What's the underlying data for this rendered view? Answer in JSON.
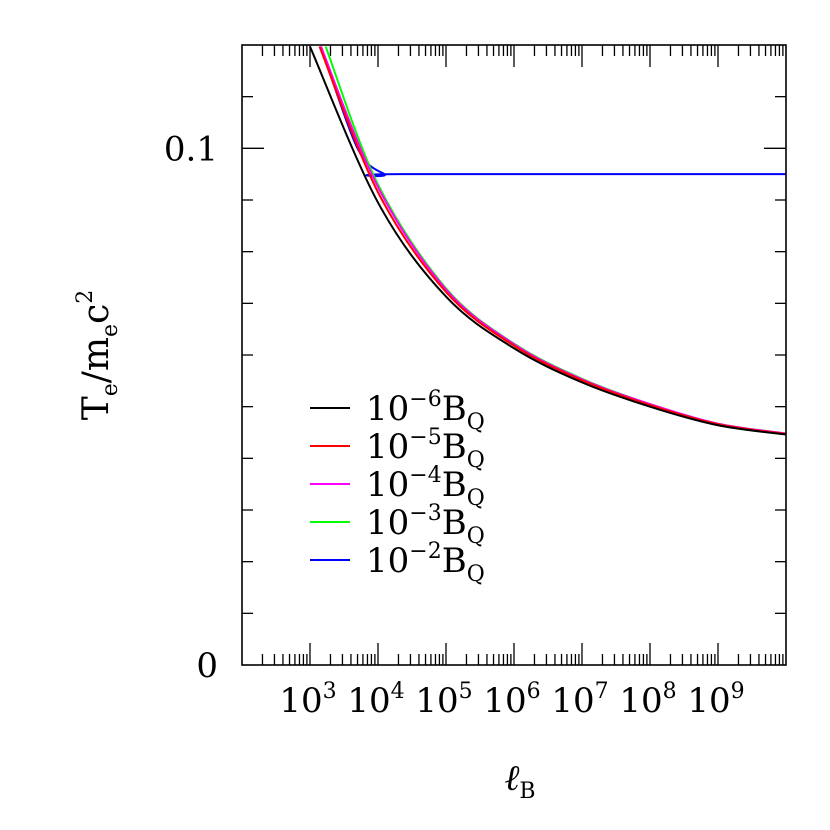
{
  "chart_data": {
    "type": "line",
    "xlabel": "ℓ",
    "xlabel_sub": "B",
    "ylabel": "T",
    "ylabel_sub1": "e",
    "ylabel_mid": "/m",
    "ylabel_sub2": "e",
    "ylabel_tail": "c",
    "ylabel_sup": "2",
    "x_scale": "log",
    "xlim": [
      100,
      10000000000
    ],
    "ylim": [
      0,
      0.12
    ],
    "grid": false,
    "legend_position": "bottom-left",
    "x_tick_labels": [
      {
        "base": "10",
        "exp": "3",
        "value": 1000
      },
      {
        "base": "10",
        "exp": "4",
        "value": 10000
      },
      {
        "base": "10",
        "exp": "5",
        "value": 100000
      },
      {
        "base": "10",
        "exp": "6",
        "value": 1000000
      },
      {
        "base": "10",
        "exp": "7",
        "value": 10000000
      },
      {
        "base": "10",
        "exp": "8",
        "value": 100000000
      },
      {
        "base": "10",
        "exp": "9",
        "value": 1000000000
      }
    ],
    "y_tick_labels": [
      {
        "label": "0",
        "value": 0
      },
      {
        "label": "0.1",
        "value": 0.1
      }
    ],
    "y_minor_step": 0.01,
    "series": [
      {
        "name": "10^-6 B_Q",
        "legend": {
          "base": "10",
          "exp": "−6",
          "sym": "B",
          "sub": "Q"
        },
        "color": "#000000",
        "x": [
          1000,
          10000,
          100000,
          1000000,
          10000000,
          100000000,
          1000000000,
          10000000000
        ],
        "y": [
          0.1197,
          0.0895,
          0.0713,
          0.0613,
          0.0547,
          0.05,
          0.0464,
          0.0446
        ]
      },
      {
        "name": "10^-5 B_Q",
        "legend": {
          "base": "10",
          "exp": "−5",
          "sym": "B",
          "sub": "Q"
        },
        "color": "#ff0000",
        "x": [
          1380,
          10000,
          100000,
          1000000,
          10000000,
          100000000,
          1000000000,
          10000000000
        ],
        "y": [
          0.1197,
          0.0915,
          0.0722,
          0.0618,
          0.0551,
          0.0503,
          0.0466,
          0.0447
        ]
      },
      {
        "name": "10^-4 B_Q",
        "legend": {
          "base": "10",
          "exp": "−4",
          "sym": "B",
          "sub": "Q"
        },
        "color": "#ff00ff",
        "x": [
          1450,
          10000,
          100000,
          1000000,
          10000000,
          100000000,
          1000000000,
          10000000000
        ],
        "y": [
          0.1197,
          0.0925,
          0.0727,
          0.0621,
          0.0553,
          0.0505,
          0.0467,
          0.0448
        ]
      },
      {
        "name": "10^-3 B_Q",
        "legend": {
          "base": "10",
          "exp": "−3",
          "sym": "B",
          "sub": "Q"
        },
        "color": "#00ff00",
        "x": [
          1700,
          10000,
          100000,
          1000000,
          10000000,
          100000000,
          1000000000,
          10000000000
        ],
        "y": [
          0.1197,
          0.093,
          0.0729,
          0.0622,
          0.0554,
          0.0505,
          0.0467,
          0.0448
        ]
      },
      {
        "name": "10^-2 B_Q",
        "legend": {
          "base": "10",
          "exp": "−2",
          "sym": "B",
          "sub": "Q"
        },
        "color": "#0000ff",
        "x": [
          1450,
          5000,
          12500,
          20000,
          10000000000
        ],
        "y": [
          0.1197,
          0.1,
          0.095,
          0.095,
          0.095
        ]
      }
    ]
  }
}
